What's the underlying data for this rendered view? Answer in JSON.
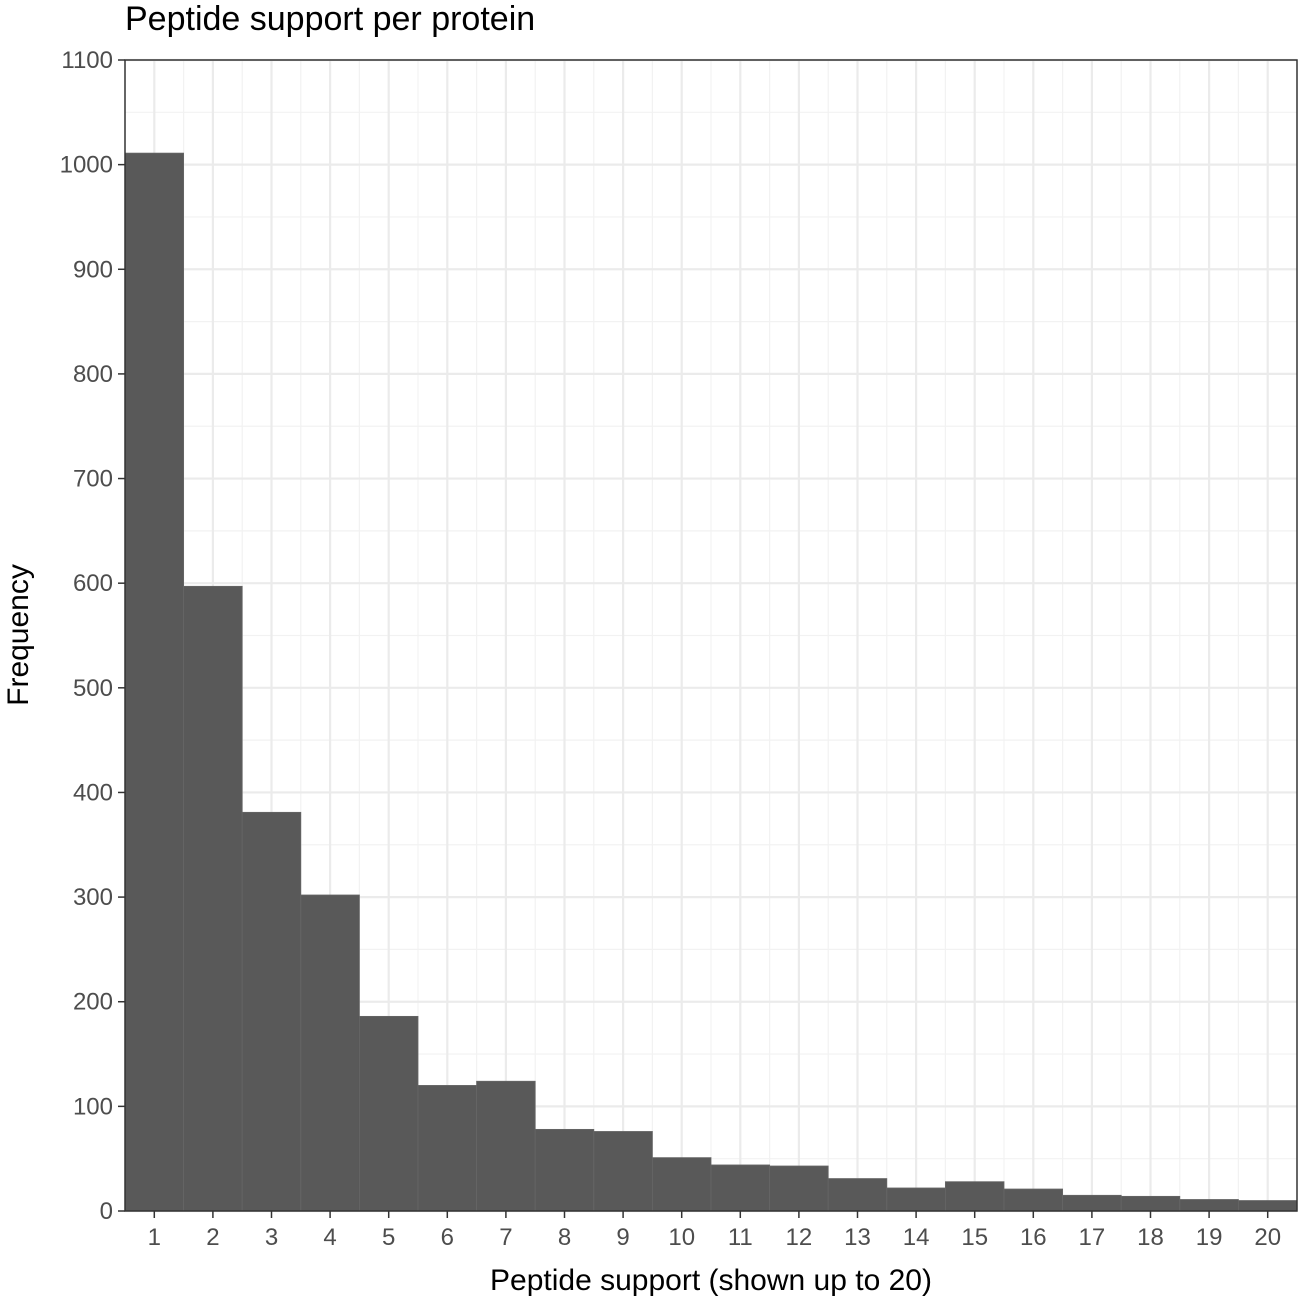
{
  "chart_data": {
    "type": "bar",
    "title": "Peptide support per protein",
    "xlabel": "Peptide support (shown up to 20)",
    "ylabel": "Frequency",
    "categories": [
      "1",
      "2",
      "3",
      "4",
      "5",
      "6",
      "7",
      "8",
      "9",
      "10",
      "11",
      "12",
      "13",
      "14",
      "15",
      "16",
      "17",
      "18",
      "19",
      "20"
    ],
    "values": [
      1011,
      597,
      381,
      302,
      186,
      120,
      124,
      78,
      76,
      51,
      44,
      43,
      31,
      22,
      28,
      21,
      15,
      14,
      11,
      10
    ],
    "ylim": [
      0,
      1100
    ],
    "yticks": [
      0,
      100,
      200,
      300,
      400,
      500,
      600,
      700,
      800,
      900,
      1000,
      1100
    ],
    "xlim": [
      0.5,
      20.5
    ],
    "grid": true,
    "legend": "none",
    "colors": {
      "bar_fill": "#595959",
      "bar_edge": "#666666",
      "grid_major": "#ebebeb",
      "grid_minor": "#f2f2f2",
      "panel_border": "#333333",
      "tick_text": "#4d4d4d"
    }
  }
}
